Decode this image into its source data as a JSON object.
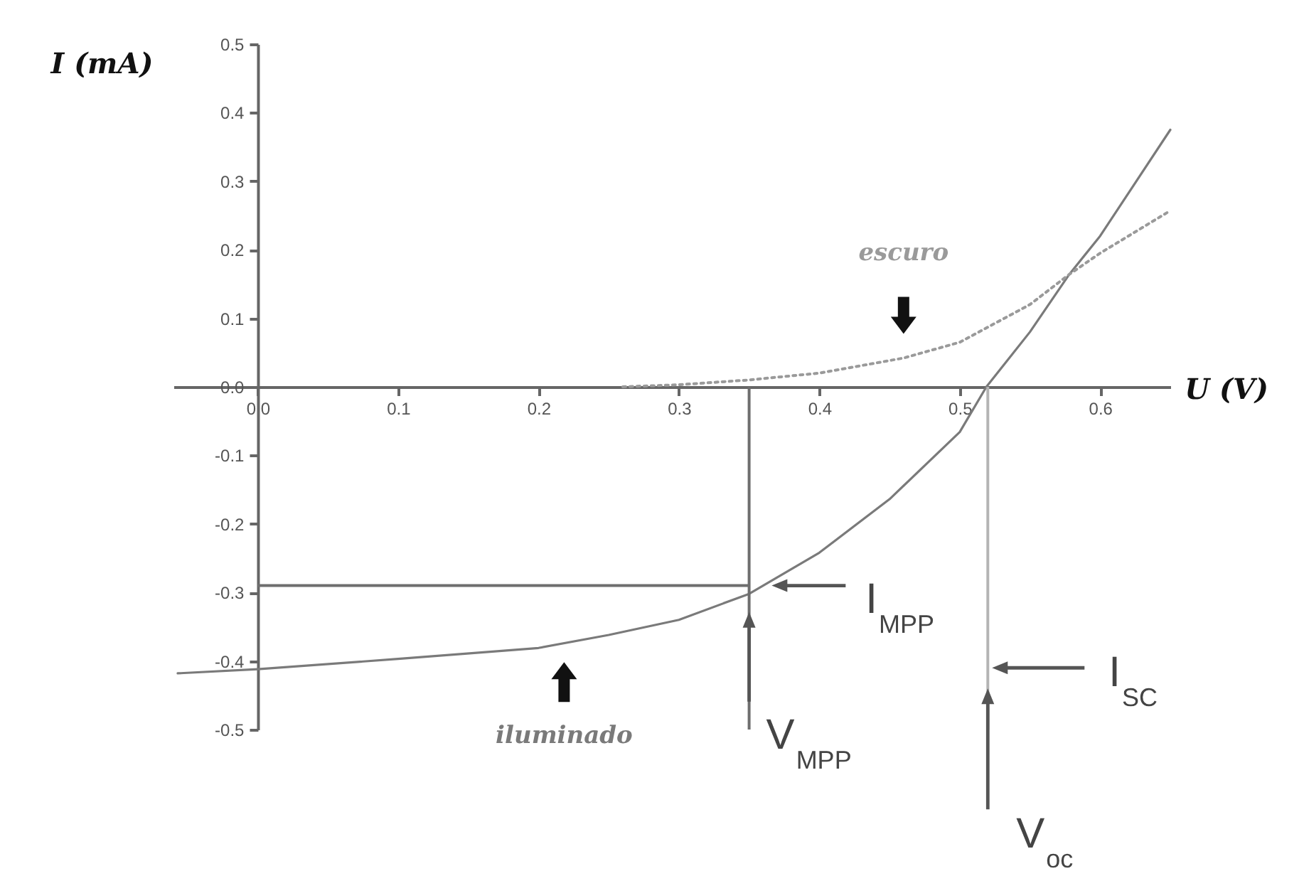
{
  "chart_data": {
    "type": "line",
    "xlabel": "U (V)",
    "ylabel": "I (mA)",
    "xlim": [
      -0.06,
      0.65
    ],
    "xticks": [
      {
        "value": 0,
        "label": "0.0"
      },
      0.1,
      0.2,
      0.3,
      0.4,
      0.5,
      0.6
    ],
    "ylim": [
      -0.5,
      0.5
    ],
    "yticks": [
      -0.5,
      -0.4,
      -0.3,
      -0.2,
      -0.1,
      {
        "value": 0,
        "label": "0.0"
      },
      0.1,
      0.2,
      0.3,
      0.4,
      0.5
    ],
    "series": [
      {
        "name": "iluminado",
        "color": "#7a7a7a",
        "line_style": "solid",
        "x": [
          -0.057,
          0,
          0.1,
          0.2,
          0.25,
          0.3,
          0.35,
          0.4,
          0.45,
          0.5,
          0.519,
          0.55,
          0.578,
          0.6,
          0.65
        ],
        "values": [
          -0.418,
          -0.412,
          -0.397,
          -0.381,
          -0.362,
          -0.34,
          -0.302,
          -0.242,
          -0.164,
          -0.066,
          0,
          0.08,
          0.164,
          0.22,
          0.375
        ]
      },
      {
        "name": "escuro",
        "color": "#9a9a9a",
        "line_style": "dotted",
        "x": [
          0.26,
          0.3,
          0.35,
          0.4,
          0.46,
          0.5,
          0.55,
          0.578,
          0.6,
          0.65
        ],
        "values": [
          0,
          0.003,
          0.01,
          0.02,
          0.042,
          0.065,
          0.12,
          0.164,
          0.195,
          0.257
        ]
      }
    ],
    "ref_lines": [
      {
        "axis": "x",
        "value": 0.35,
        "color": "#6e6e6e"
      },
      {
        "axis": "y",
        "value": -0.29,
        "color": "#6e6e6e"
      },
      {
        "axis": "x",
        "value": 0.52,
        "color": "#b4b4b4"
      }
    ],
    "annotations": [
      {
        "text": "I$_{MPP}$",
        "x": 0.36,
        "y": -0.29
      },
      {
        "text": "V$_{MPP}$",
        "x": 0.35,
        "y": -0.31
      },
      {
        "text": "I$_{SC}$",
        "x": 0.52,
        "y": -0.41
      },
      {
        "text": "V$_{oc}$",
        "x": 0.52,
        "y": -0.44
      }
    ]
  }
}
